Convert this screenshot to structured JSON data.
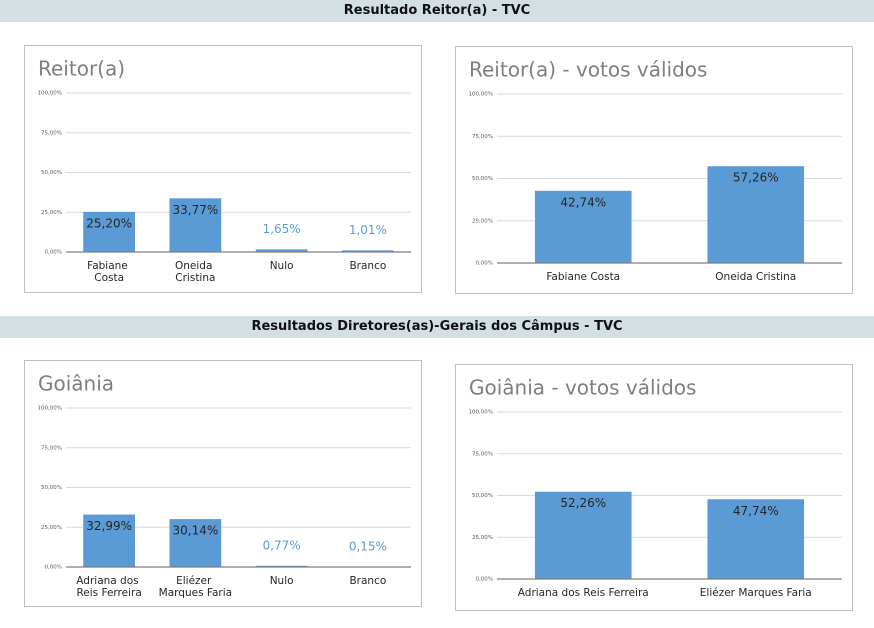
{
  "sections": [
    "Resultado Reitor(a) - TVC",
    "Resultados Diretores(as)-Gerais dos Câmpus - TVC"
  ],
  "chart_data": [
    {
      "type": "bar",
      "title": "Reitor(a)",
      "categories": [
        "Fabiane Costa",
        "Oneida Cristina",
        "Nulo",
        "Branco"
      ],
      "values": [
        25.2,
        33.77,
        1.65,
        1.01
      ],
      "value_labels": [
        "25,20%",
        "33,77%",
        "1,65%",
        "1,01%"
      ],
      "color": "#5b9bd5",
      "ylim": [
        0,
        100
      ],
      "yticks": [
        {
          "value": 0,
          "label": "0,00%"
        },
        {
          "value": 25,
          "label": "25,00%"
        },
        {
          "value": 50,
          "label": "50,00%"
        },
        {
          "value": 75,
          "label": "75,00%"
        },
        {
          "value": 100,
          "label": "100,00%"
        }
      ],
      "grid": true
    },
    {
      "type": "bar",
      "title": "Reitor(a) - votos válidos",
      "categories": [
        "Fabiane Costa",
        "Oneida Cristina"
      ],
      "values": [
        42.74,
        57.26
      ],
      "value_labels": [
        "42,74%",
        "57,26%"
      ],
      "color": "#5b9bd5",
      "ylim": [
        0,
        100
      ],
      "yticks": [
        {
          "value": 0,
          "label": "0,00%"
        },
        {
          "value": 25,
          "label": "25,00%"
        },
        {
          "value": 50,
          "label": "50,00%"
        },
        {
          "value": 75,
          "label": "75,00%"
        },
        {
          "value": 100,
          "label": "100,00%"
        }
      ],
      "grid": true
    },
    {
      "type": "bar",
      "title": "Goiânia",
      "categories": [
        "Adriana dos Reis Ferreira",
        "Eliézer Marques Faria",
        "Nulo",
        "Branco"
      ],
      "values": [
        32.99,
        30.14,
        0.77,
        0.15
      ],
      "value_labels": [
        "32,99%",
        "30,14%",
        "0,77%",
        "0,15%"
      ],
      "color": "#5b9bd5",
      "ylim": [
        0,
        100
      ],
      "yticks": [
        {
          "value": 0,
          "label": "0,00%"
        },
        {
          "value": 25,
          "label": "25,00%"
        },
        {
          "value": 50,
          "label": "50,00%"
        },
        {
          "value": 75,
          "label": "75,00%"
        },
        {
          "value": 100,
          "label": "100,00%"
        }
      ],
      "grid": true
    },
    {
      "type": "bar",
      "title": "Goiânia - votos válidos",
      "categories": [
        "Adriana dos Reis Ferreira",
        "Eliézer Marques Faria"
      ],
      "values": [
        52.26,
        47.74
      ],
      "value_labels": [
        "52,26%",
        "47,74%"
      ],
      "color": "#5b9bd5",
      "ylim": [
        0,
        100
      ],
      "yticks": [
        {
          "value": 0,
          "label": "0,00%"
        },
        {
          "value": 25,
          "label": "25,00%"
        },
        {
          "value": 50,
          "label": "50,00%"
        },
        {
          "value": 75,
          "label": "75,00%"
        },
        {
          "value": 100,
          "label": "100,00%"
        }
      ],
      "grid": true
    }
  ]
}
